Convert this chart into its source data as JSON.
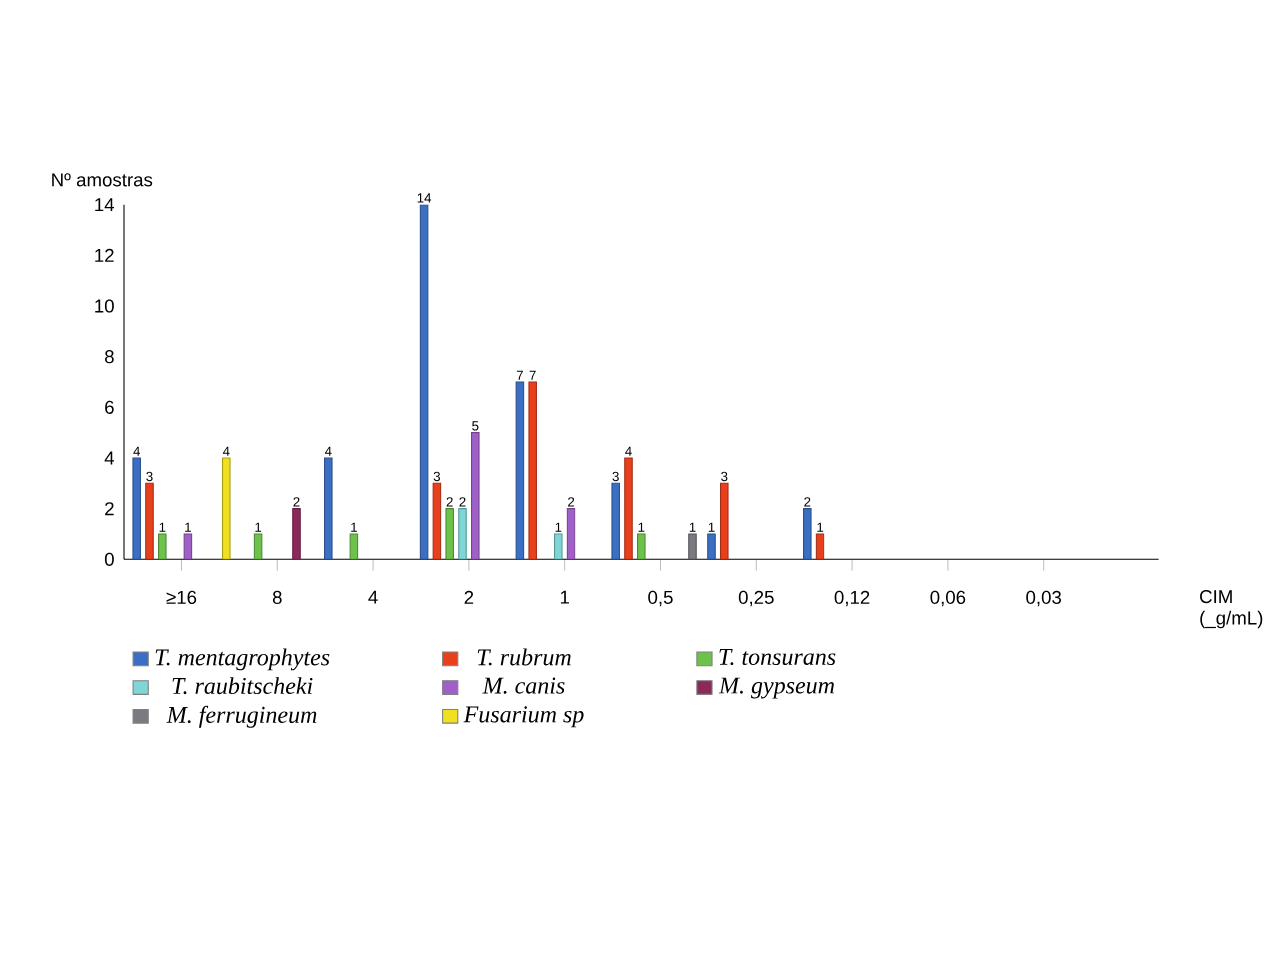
{
  "chart_data": {
    "type": "bar",
    "ylabel": "Nº amostras",
    "xlabel": "CIM (_g/mL)",
    "categories": [
      "≥16",
      "8",
      "4",
      "2",
      "1",
      "0,5",
      "0,25",
      "0,12",
      "0,06",
      "0,03"
    ],
    "series": [
      {
        "name": "T. mentagrophytes",
        "color": "#3a6fc4",
        "values": [
          4,
          null,
          4,
          14,
          7,
          3,
          1,
          2,
          null,
          null
        ]
      },
      {
        "name": "T. rubrum",
        "color": "#e8401c",
        "values": [
          3,
          null,
          null,
          3,
          7,
          4,
          3,
          1,
          null,
          null
        ]
      },
      {
        "name": "T. tonsurans",
        "color": "#6cc24a",
        "values": [
          1,
          1,
          1,
          2,
          null,
          1,
          null,
          null,
          null,
          null
        ]
      },
      {
        "name": "T. raubitscheki",
        "color": "#7fd6d6",
        "values": [
          null,
          null,
          null,
          2,
          1,
          null,
          null,
          null,
          null,
          null
        ]
      },
      {
        "name": "M. canis",
        "color": "#a060c8",
        "values": [
          1,
          null,
          null,
          5,
          2,
          null,
          null,
          null,
          null,
          null
        ]
      },
      {
        "name": "M. gypseum",
        "color": "#8b2a5a",
        "values": [
          null,
          2,
          null,
          null,
          null,
          null,
          null,
          null,
          null,
          null
        ]
      },
      {
        "name": "M. ferrugineum",
        "color": "#7a7a80",
        "values": [
          null,
          null,
          null,
          null,
          null,
          1,
          null,
          null,
          null,
          null
        ]
      },
      {
        "name": "Fusarium sp",
        "color": "#f0e020",
        "values": [
          4,
          null,
          null,
          null,
          null,
          null,
          null,
          null,
          null,
          null
        ]
      }
    ],
    "ylim": [
      0,
      14
    ],
    "yticks": [
      0,
      2,
      4,
      6,
      8,
      10,
      12,
      14
    ],
    "data_labels": true,
    "legend": "bottom"
  }
}
